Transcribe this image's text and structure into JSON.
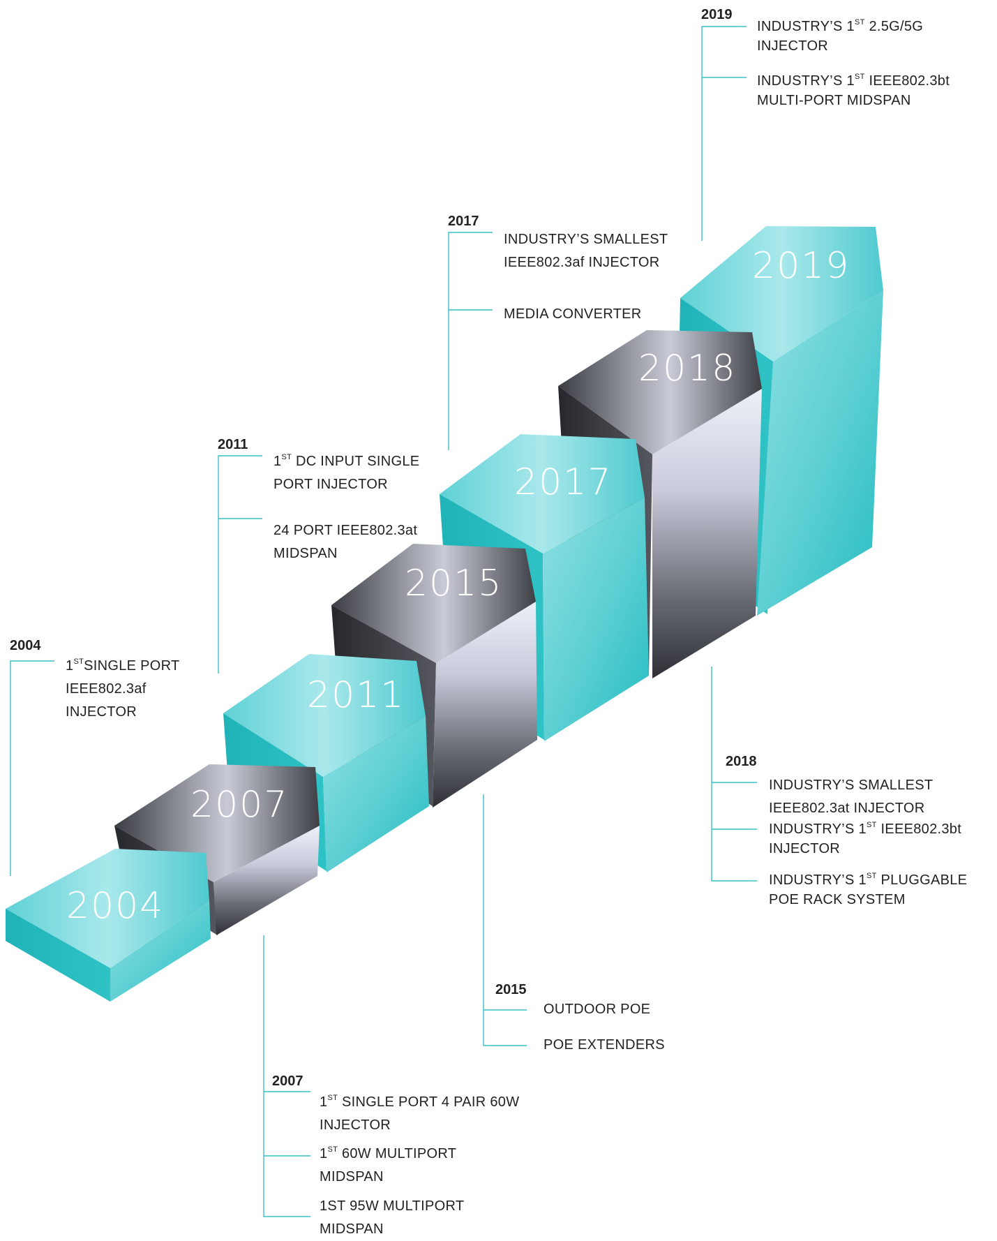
{
  "colors": {
    "teal": "#2bbfc2",
    "teal_light": "#7fdce0",
    "dark_gray": "#3f4248",
    "silver": "#d6d8e6",
    "connector": "#37c1c4"
  },
  "steps": [
    {
      "year": "2004",
      "color": "teal"
    },
    {
      "year": "2007",
      "color": "gray"
    },
    {
      "year": "2011",
      "color": "teal"
    },
    {
      "year": "2015",
      "color": "gray"
    },
    {
      "year": "2017",
      "color": "teal"
    },
    {
      "year": "2018",
      "color": "gray"
    },
    {
      "year": "2019",
      "color": "teal"
    }
  ],
  "milestones": [
    {
      "year": "2004",
      "items": [
        {
          "pre": "1",
          "sup": "ST",
          "text": "SINGLE PORT IEEE802.3af INJECTOR"
        }
      ]
    },
    {
      "year": "2007",
      "items": [
        {
          "pre": "1",
          "sup": "ST",
          "text": " SINGLE PORT 4 PAIR 60W INJECTOR"
        },
        {
          "pre": "1",
          "sup": "ST",
          "text": " 60W MULTIPORT MIDSPAN"
        },
        {
          "pre": "",
          "sup": "",
          "text": "1ST 95W MULTIPORT MIDSPAN"
        }
      ]
    },
    {
      "year": "2011",
      "items": [
        {
          "pre": "1",
          "sup": "ST",
          "text": " DC INPUT SINGLE PORT INJECTOR"
        },
        {
          "pre": "",
          "sup": "",
          "text": "24 PORT IEEE802.3at MIDSPAN"
        }
      ]
    },
    {
      "year": "2015",
      "items": [
        {
          "pre": "",
          "sup": "",
          "text": "OUTDOOR POE"
        },
        {
          "pre": "",
          "sup": "",
          "text": "POE EXTENDERS"
        }
      ]
    },
    {
      "year": "2017",
      "items": [
        {
          "pre": "",
          "sup": "",
          "text": "INDUSTRY’S SMALLEST IEEE802.3af INJECTOR"
        },
        {
          "pre": "",
          "sup": "",
          "text": "MEDIA  CONVERTER"
        }
      ]
    },
    {
      "year": "2018",
      "items": [
        {
          "pre": "",
          "sup": "",
          "text": "INDUSTRY’S SMALLEST IEEE802.3at INJECTOR"
        },
        {
          "pre": "INDUSTRY’S 1",
          "sup": "ST",
          "text": " IEEE802.3bt INJECTOR"
        },
        {
          "pre": "INDUSTRY’S 1",
          "sup": "ST",
          "text": " PLUGGABLE POE RACK SYSTEM"
        }
      ]
    },
    {
      "year": "2019",
      "items": [
        {
          "pre": "INDUSTRY’S 1",
          "sup": "ST",
          "text": " 2.5G/5G INJECTOR"
        },
        {
          "pre": "INDUSTRY’S 1",
          "sup": "ST",
          "text": " IEEE802.3bt MULTI-PORT MIDSPAN"
        }
      ]
    }
  ]
}
